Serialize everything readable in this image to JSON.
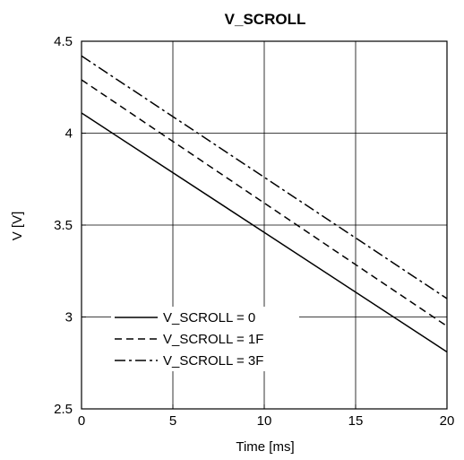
{
  "chart_data": {
    "type": "line",
    "title": "V_SCROLL",
    "xlabel": "Time [ms]",
    "ylabel": "V [V]",
    "xlim": [
      0,
      20
    ],
    "ylim": [
      2.5,
      4.5
    ],
    "xticks": [
      0,
      5,
      10,
      15,
      20
    ],
    "xtick_labels": [
      "0",
      "5",
      "10",
      "15",
      "20"
    ],
    "yticks": [
      2.5,
      3,
      3.5,
      4,
      4.5
    ],
    "ytick_labels": [
      "2.5",
      "3",
      "3.5",
      "4",
      "4.5"
    ],
    "grid": true,
    "legend_position": "bottom-left",
    "series": [
      {
        "name": "V_SCROLL = 0",
        "x": [
          0,
          20
        ],
        "y": [
          4.11,
          2.81
        ],
        "dash": "solid",
        "color": "#000000"
      },
      {
        "name": "V_SCROLL = 1F",
        "x": [
          0,
          20
        ],
        "y": [
          4.29,
          2.95
        ],
        "dash": "dashed",
        "color": "#000000"
      },
      {
        "name": "V_SCROLL = 3F",
        "x": [
          0,
          20
        ],
        "y": [
          4.42,
          3.1
        ],
        "dash": "dashdot",
        "color": "#000000"
      }
    ]
  }
}
